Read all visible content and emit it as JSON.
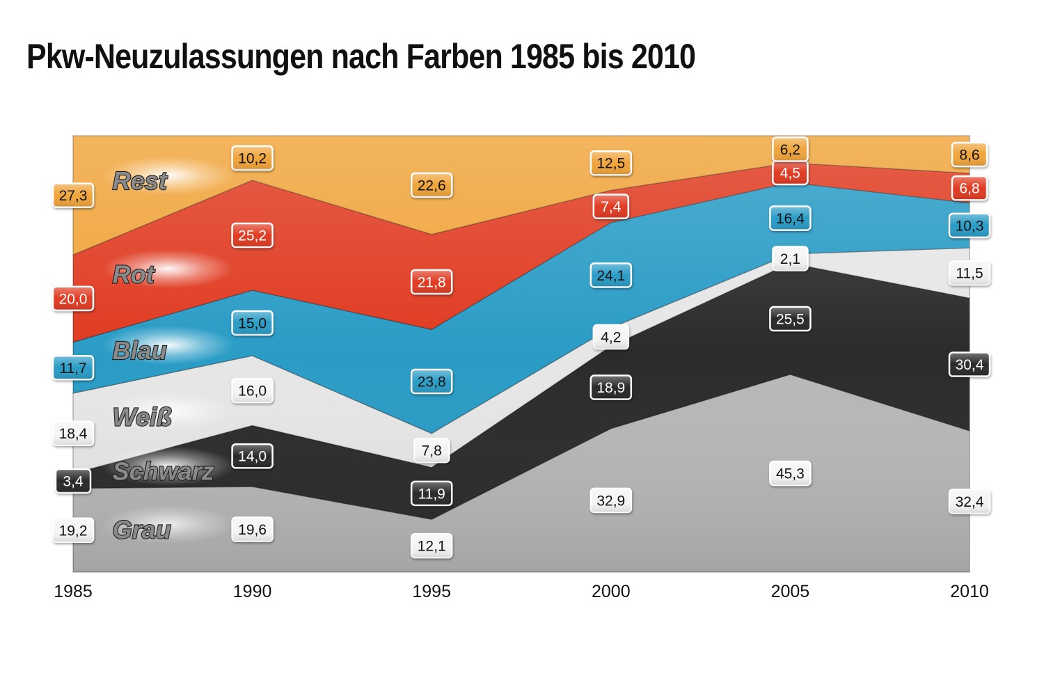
{
  "chart_data": {
    "type": "area",
    "title": "Pkw-Neuzulassungen nach Farben 1985 bis 2010",
    "x": [
      "1985",
      "1990",
      "1995",
      "2000",
      "2005",
      "2010"
    ],
    "stacked": true,
    "normalized_to": 100,
    "ylim": [
      0,
      100
    ],
    "grid": false,
    "legend": "labels inside areas",
    "series": [
      {
        "name": "Grau",
        "values": [
          19.2,
          19.6,
          12.1,
          32.9,
          45.3,
          32.4
        ],
        "labels": [
          "19,2",
          "19,6",
          "12,1",
          "32,9",
          "45,3",
          "32,4"
        ],
        "color": "#b7b7b7"
      },
      {
        "name": "Schwarz",
        "values": [
          3.4,
          14.0,
          11.9,
          18.9,
          25.5,
          30.4
        ],
        "labels": [
          "3,4",
          "14,0",
          "11,9",
          "18,9",
          "25,5",
          "30,4"
        ],
        "color": "#2b2b2b"
      },
      {
        "name": "Weiß",
        "values": [
          18.4,
          16.0,
          7.8,
          4.2,
          2.1,
          11.5
        ],
        "labels": [
          "18,4",
          "16,0",
          "7,8",
          "4,2",
          "2,1",
          "11,5"
        ],
        "color": "#e6e6e6"
      },
      {
        "name": "Blau",
        "values": [
          11.7,
          15.0,
          23.8,
          24.1,
          16.4,
          10.3
        ],
        "labels": [
          "11,7",
          "15,0",
          "23,8",
          "24,1",
          "16,4",
          "10,3"
        ],
        "color": "#2a9cc6"
      },
      {
        "name": "Rot",
        "values": [
          20.0,
          25.2,
          21.8,
          7.4,
          4.5,
          6.8
        ],
        "labels": [
          "20,0",
          "25,2",
          "21,8",
          "7,4",
          "4,5",
          "6,8"
        ],
        "color": "#e03b21"
      },
      {
        "name": "Rest",
        "values": [
          27.3,
          10.2,
          22.6,
          12.5,
          6.2,
          8.6
        ],
        "labels": [
          "27,3",
          "10,2",
          "22,6",
          "12,5",
          "6,2",
          "8,6"
        ],
        "color": "#f0a43a"
      }
    ]
  }
}
